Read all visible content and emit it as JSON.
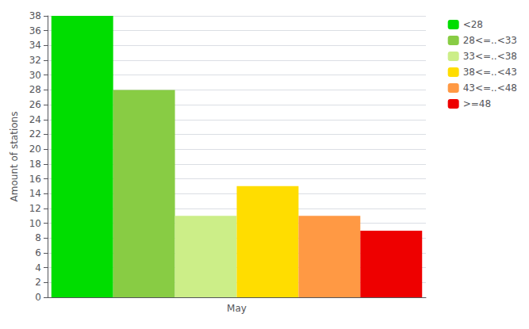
{
  "chart_data": {
    "type": "bar",
    "categories": [
      "May"
    ],
    "series": [
      {
        "name": "<28",
        "color": "#00dd00",
        "values": [
          38
        ]
      },
      {
        "name": "28<=..<33",
        "color": "#88cc44",
        "values": [
          28
        ]
      },
      {
        "name": "33<=..<38",
        "color": "#ccee88",
        "values": [
          11
        ]
      },
      {
        "name": "38<=..<43",
        "color": "#ffdd00",
        "values": [
          15
        ]
      },
      {
        "name": "43<=..<48",
        "color": "#ff9944",
        "values": [
          11
        ]
      },
      {
        "name": ">=48",
        "color": "#ee0000",
        "values": [
          9
        ]
      }
    ],
    "ylabel": "Amount of stations",
    "ylim": [
      0,
      38
    ],
    "yticks": [
      0,
      2,
      4,
      6,
      8,
      10,
      12,
      14,
      16,
      18,
      20,
      22,
      24,
      26,
      28,
      30,
      32,
      34,
      36,
      38
    ],
    "grid": true,
    "legend": "upper right"
  }
}
